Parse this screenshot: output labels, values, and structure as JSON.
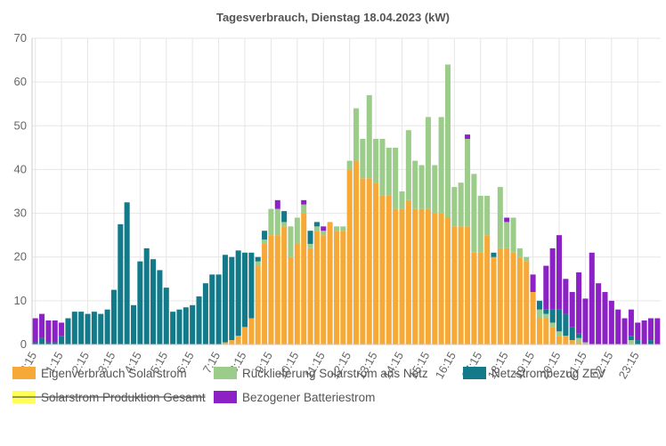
{
  "chart_data": {
    "type": "bar",
    "stacked": true,
    "title": "Tagesverbrauch, Dienstag 18.04.2023 (kW)",
    "ylim": [
      0,
      70
    ],
    "yticks": [
      "0",
      "10",
      "20",
      "30",
      "40",
      "50",
      "60",
      "70"
    ],
    "xticks": [
      "0:15",
      "1:15",
      "2:15",
      "3:15",
      "4:15",
      "5:15",
      "6:15",
      "7:15",
      "8:15",
      "9:15",
      "10:15",
      "11:15",
      "12:15",
      "13:15",
      "14:15",
      "15:15",
      "16:15",
      "17:15",
      "18:15",
      "19:15",
      "20:15",
      "21:15",
      "22:15",
      "23:15"
    ],
    "grid": true,
    "legend_position": "bottom",
    "series": [
      {
        "name": "Eigenverbrauch Solarstrom",
        "color": "#f7a937",
        "values": [
          0,
          0,
          0,
          0,
          0,
          0,
          0,
          0,
          0,
          0,
          0,
          0,
          0,
          0,
          0,
          0,
          0,
          0,
          0,
          0,
          0,
          0,
          0,
          0,
          0,
          0,
          0,
          0,
          0,
          0.5,
          1,
          2,
          4,
          6,
          18,
          23,
          25,
          25,
          27,
          20,
          23,
          30,
          22,
          26,
          25,
          28,
          26,
          26,
          40,
          42,
          38,
          38,
          37,
          34,
          34,
          31,
          31,
          33,
          31,
          31,
          31,
          30,
          30,
          29,
          27,
          27,
          27,
          21,
          21,
          25,
          20,
          22,
          22,
          21,
          20,
          19,
          12,
          6,
          6,
          4,
          2,
          2,
          1,
          0.5,
          0,
          0,
          0,
          0,
          0,
          0,
          0,
          0,
          0,
          0,
          0,
          0
        ]
      },
      {
        "name": "Rücklieferung Solarstrom ans Netz",
        "color": "#9ccc8a",
        "values": [
          0,
          0,
          0,
          0,
          0,
          0,
          0,
          0,
          0,
          0,
          0,
          0,
          0,
          0,
          0,
          0,
          0,
          0,
          0,
          0,
          0,
          0,
          0,
          0,
          0,
          0,
          0,
          0,
          0,
          0,
          0,
          0,
          0,
          0,
          1,
          1,
          6,
          6,
          1,
          7,
          6,
          2,
          1,
          1,
          1,
          0,
          1,
          1,
          2,
          12,
          9,
          19,
          10,
          13,
          11,
          14,
          4,
          16,
          11,
          10,
          21,
          11,
          22,
          35,
          9,
          10,
          20,
          18,
          13,
          9,
          0,
          14,
          6,
          8,
          2,
          1,
          0,
          2,
          1,
          1,
          1,
          0,
          0,
          1,
          0.5,
          0,
          0,
          0,
          0,
          0,
          0,
          1,
          0,
          0,
          0,
          0
        ]
      },
      {
        "name": "Netzstrombezug ZEV",
        "color": "#137a8a",
        "values": [
          0.5,
          1.5,
          0.5,
          0.5,
          2,
          6,
          7.5,
          7.5,
          7,
          7.5,
          7,
          8,
          12.5,
          27.5,
          32.5,
          9,
          19,
          22,
          19.5,
          17,
          13,
          7.5,
          8,
          8.5,
          9,
          11,
          14,
          16,
          16,
          20,
          19,
          19.5,
          17,
          15,
          1,
          2,
          0,
          0,
          2.5,
          0,
          0,
          0,
          3,
          1,
          0,
          0,
          0,
          0,
          0,
          0,
          0,
          0,
          0,
          0,
          0,
          0,
          0,
          0,
          0,
          0,
          0,
          0,
          0,
          0,
          0,
          0,
          0,
          0,
          0,
          0,
          1,
          0,
          0,
          0,
          0,
          0,
          0,
          2,
          1,
          3,
          5,
          5,
          3,
          1,
          0,
          0,
          0,
          0,
          0,
          0,
          0,
          1,
          1,
          0,
          1,
          0
        ]
      },
      {
        "name": "Solarstrom Produktion Gesamt",
        "color": "#ffff55",
        "hidden": true,
        "values": []
      },
      {
        "name": "Bezogener Batteriestrom",
        "color": "#8c22c6",
        "values": [
          5.5,
          5.5,
          5,
          5,
          3,
          0,
          0,
          0,
          0,
          0,
          0,
          0,
          0,
          0,
          0,
          0,
          0,
          0,
          0,
          0,
          0,
          0,
          0,
          0,
          0,
          0,
          0,
          0,
          0,
          0,
          0,
          0,
          0,
          0,
          0,
          0,
          0,
          2,
          0,
          0,
          0,
          1,
          0,
          0,
          1,
          0,
          0,
          0,
          0,
          0,
          0,
          0,
          0,
          0,
          0,
          0,
          0,
          0,
          0,
          0,
          0,
          0,
          0,
          0,
          0,
          0,
          1,
          0,
          0,
          0,
          0,
          0,
          1,
          0,
          0,
          0,
          4,
          0,
          10,
          14,
          17,
          8,
          8,
          14,
          10,
          21,
          14,
          12,
          10,
          8,
          6,
          6,
          4,
          5.5,
          5,
          6
        ]
      }
    ],
    "legend": [
      {
        "name": "Eigenverbrauch Solarstrom",
        "color": "#f7a937",
        "hidden": false
      },
      {
        "name": "Rücklieferung Solarstrom ans Netz",
        "color": "#9ccc8a",
        "hidden": false
      },
      {
        "name": "Netzstrombezug ZEV",
        "color": "#137a8a",
        "hidden": false
      },
      {
        "name": "Solarstrom Produktion Gesamt",
        "color": "#ffff55",
        "hidden": true
      },
      {
        "name": "Bezogener Batteriestrom",
        "color": "#8c22c6",
        "hidden": false
      }
    ]
  }
}
